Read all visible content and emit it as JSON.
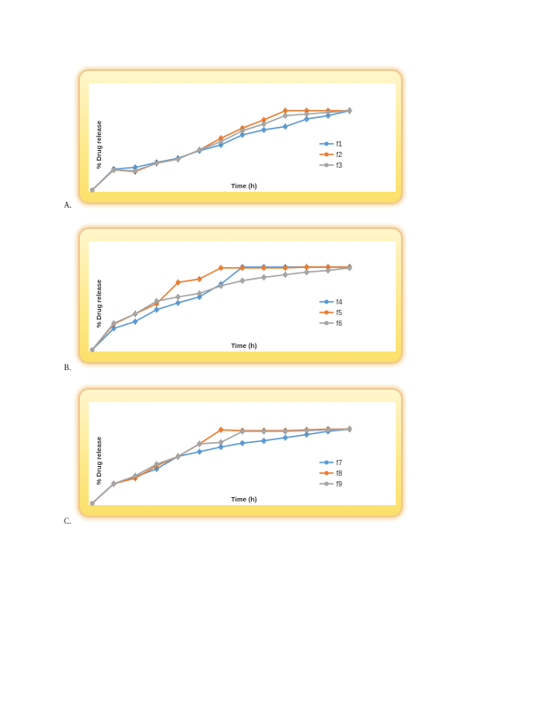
{
  "chart_data": [
    {
      "type": "line",
      "panel_label": "A.",
      "title": "",
      "xlabel": "Time (h)",
      "ylabel": "% Drug release",
      "x": [
        0,
        1,
        2,
        3,
        4,
        5,
        6,
        7,
        8,
        9,
        10,
        11,
        12
      ],
      "ylim": [
        0,
        100
      ],
      "legend_position": "right",
      "series": [
        {
          "name": "f1",
          "color": "#5b9bd5",
          "values": [
            0,
            25,
            27,
            33,
            38,
            47,
            54,
            66,
            72,
            76,
            85,
            89,
            95
          ]
        },
        {
          "name": "f2",
          "color": "#ed7d31",
          "values": [
            0,
            24,
            22,
            32,
            37,
            48,
            62,
            74,
            84,
            95,
            95,
            95,
            95
          ]
        },
        {
          "name": "f3",
          "color": "#a5a5a5",
          "values": [
            0,
            24,
            23,
            32,
            37,
            48,
            58,
            71,
            79,
            89,
            91,
            93,
            95
          ]
        }
      ]
    },
    {
      "type": "line",
      "panel_label": "B.",
      "title": "",
      "xlabel": "Time (h)",
      "ylabel": "% Drug release",
      "x": [
        0,
        1,
        2,
        3,
        4,
        5,
        6,
        7,
        8,
        9,
        10,
        11,
        12
      ],
      "ylim": [
        0,
        100
      ],
      "legend_position": "right",
      "series": [
        {
          "name": "f4",
          "color": "#5b9bd5",
          "values": [
            0,
            25,
            33,
            47,
            55,
            62,
            77,
            97,
            97,
            97,
            97,
            97,
            97
          ]
        },
        {
          "name": "f5",
          "color": "#ed7d31",
          "values": [
            0,
            30,
            42,
            54,
            79,
            83,
            96,
            96,
            96,
            96,
            97,
            97,
            97
          ]
        },
        {
          "name": "f6",
          "color": "#a5a5a5",
          "values": [
            0,
            31,
            42,
            57,
            62,
            66,
            75,
            81,
            85,
            88,
            91,
            93,
            96
          ]
        }
      ]
    },
    {
      "type": "line",
      "panel_label": "C.",
      "title": "",
      "xlabel": "Time (h)",
      "ylabel": "% Drug release",
      "x": [
        0,
        1,
        2,
        3,
        4,
        5,
        6,
        7,
        8,
        9,
        10,
        11,
        12
      ],
      "ylim": [
        0,
        100
      ],
      "legend_position": "right",
      "series": [
        {
          "name": "f7",
          "color": "#5b9bd5",
          "values": [
            0,
            25,
            34,
            44,
            60,
            66,
            72,
            77,
            80,
            84,
            88,
            92,
            95
          ]
        },
        {
          "name": "f8",
          "color": "#ed7d31",
          "values": [
            0,
            25,
            32,
            48,
            60,
            76,
            94,
            93,
            93,
            93,
            94,
            95,
            95
          ]
        },
        {
          "name": "f9",
          "color": "#a5a5a5",
          "values": [
            0,
            25,
            35,
            50,
            60,
            76,
            78,
            92,
            92,
            92,
            93,
            94,
            95
          ]
        }
      ]
    }
  ]
}
